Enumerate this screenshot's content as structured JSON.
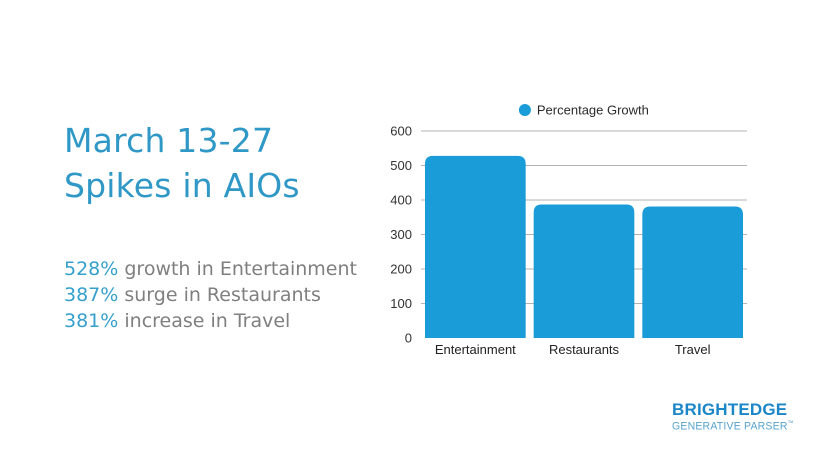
{
  "slide": {
    "title_line1": "March 13-27",
    "title_line2": "Spikes in AIOs",
    "stats": [
      {
        "value": "528%",
        "text": " growth in Entertainment"
      },
      {
        "value": "387%",
        "text": " surge in Restaurants"
      },
      {
        "value": "381%",
        "text": " increase in Travel"
      }
    ]
  },
  "logo": {
    "name": "BRIGHTEDGE",
    "subtitle": "GENERATIVE PARSER",
    "trademark": "™"
  },
  "colors": {
    "bar_blue": "#199cd8",
    "title_blue": "#2f98c6",
    "stat_blue": "#35a0cb",
    "body_gray": "#7f7f7f",
    "grid_gray": "#b3b3b3",
    "axis_text": "#333333",
    "logo_blue": "#1b86c8",
    "logo_sub_blue": "#57a3cf"
  },
  "chart_data": {
    "type": "bar",
    "categories": [
      "Entertainment",
      "Restaurants",
      "Travel"
    ],
    "values": [
      528,
      387,
      381
    ],
    "series": [
      {
        "name": "Percentage Growth",
        "values": [
          528,
          387,
          381
        ]
      }
    ],
    "legend_label": "Percentage Growth",
    "title": "",
    "xlabel": "",
    "ylabel": "",
    "ylim": [
      0,
      600
    ],
    "ytick_step": 100,
    "yticks": [
      0,
      100,
      200,
      300,
      400,
      500,
      600
    ],
    "grid": true,
    "legend_position": "top",
    "bar_color": "#199cd8"
  }
}
